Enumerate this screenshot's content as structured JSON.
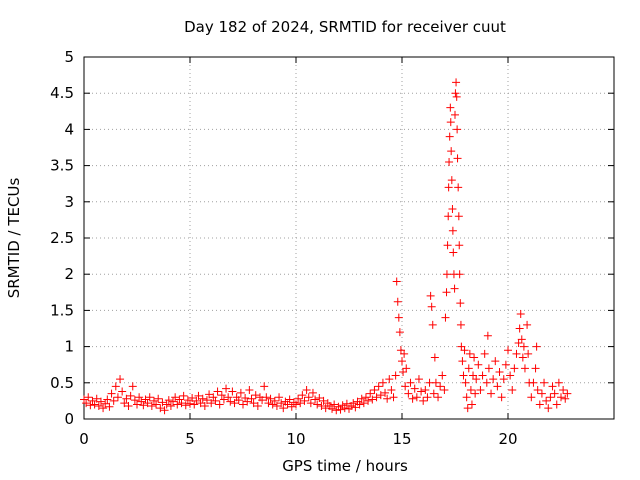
{
  "chart_data": {
    "type": "scatter",
    "title": "Day 182 of 2024, SRMTID for receiver cuut",
    "xlabel": "GPS time / hours",
    "ylabel": "SRMTID / TECUs",
    "xlim": [
      0,
      25
    ],
    "ylim": [
      0,
      5
    ],
    "xticks": [
      0,
      5,
      10,
      15,
      20
    ],
    "xtick_labels": [
      "0",
      "5",
      "10",
      "15",
      "20"
    ],
    "yticks": [
      0,
      0.5,
      1,
      1.5,
      2,
      2.5,
      3,
      3.5,
      4,
      4.5,
      5
    ],
    "ytick_labels": [
      "0",
      "0.5",
      "1",
      "1.5",
      "2",
      "2.5",
      "3",
      "3.5",
      "4",
      "4.5",
      "5"
    ],
    "grid": true,
    "marker": "+",
    "series": [
      {
        "name": "SRMTID",
        "color": "#ff0000",
        "points": [
          [
            0.0,
            0.27
          ],
          [
            0.1,
            0.22
          ],
          [
            0.2,
            0.3
          ],
          [
            0.3,
            0.19
          ],
          [
            0.4,
            0.25
          ],
          [
            0.5,
            0.2
          ],
          [
            0.6,
            0.28
          ],
          [
            0.7,
            0.18
          ],
          [
            0.8,
            0.24
          ],
          [
            0.9,
            0.15
          ],
          [
            1.0,
            0.21
          ],
          [
            1.1,
            0.27
          ],
          [
            1.2,
            0.17
          ],
          [
            1.3,
            0.35
          ],
          [
            1.4,
            0.25
          ],
          [
            1.5,
            0.45
          ],
          [
            1.6,
            0.3
          ],
          [
            1.7,
            0.55
          ],
          [
            1.8,
            0.38
          ],
          [
            1.9,
            0.22
          ],
          [
            2.0,
            0.28
          ],
          [
            2.1,
            0.18
          ],
          [
            2.2,
            0.32
          ],
          [
            2.3,
            0.45
          ],
          [
            2.4,
            0.26
          ],
          [
            2.5,
            0.2
          ],
          [
            2.6,
            0.3
          ],
          [
            2.7,
            0.24
          ],
          [
            2.8,
            0.19
          ],
          [
            2.9,
            0.27
          ],
          [
            3.0,
            0.22
          ],
          [
            3.1,
            0.3
          ],
          [
            3.2,
            0.18
          ],
          [
            3.3,
            0.25
          ],
          [
            3.4,
            0.2
          ],
          [
            3.5,
            0.28
          ],
          [
            3.6,
            0.15
          ],
          [
            3.7,
            0.23
          ],
          [
            3.8,
            0.12
          ],
          [
            3.9,
            0.2
          ],
          [
            4.0,
            0.26
          ],
          [
            4.1,
            0.18
          ],
          [
            4.2,
            0.24
          ],
          [
            4.3,
            0.3
          ],
          [
            4.4,
            0.2
          ],
          [
            4.5,
            0.27
          ],
          [
            4.6,
            0.22
          ],
          [
            4.7,
            0.32
          ],
          [
            4.8,
            0.19
          ],
          [
            4.9,
            0.26
          ],
          [
            5.0,
            0.21
          ],
          [
            5.1,
            0.29
          ],
          [
            5.2,
            0.2
          ],
          [
            5.3,
            0.25
          ],
          [
            5.4,
            0.32
          ],
          [
            5.5,
            0.22
          ],
          [
            5.6,
            0.28
          ],
          [
            5.7,
            0.18
          ],
          [
            5.8,
            0.26
          ],
          [
            5.9,
            0.34
          ],
          [
            6.0,
            0.22
          ],
          [
            6.1,
            0.3
          ],
          [
            6.2,
            0.25
          ],
          [
            6.3,
            0.38
          ],
          [
            6.4,
            0.2
          ],
          [
            6.5,
            0.33
          ],
          [
            6.6,
            0.27
          ],
          [
            6.7,
            0.42
          ],
          [
            6.8,
            0.3
          ],
          [
            6.9,
            0.24
          ],
          [
            7.0,
            0.38
          ],
          [
            7.1,
            0.22
          ],
          [
            7.2,
            0.3
          ],
          [
            7.3,
            0.26
          ],
          [
            7.4,
            0.36
          ],
          [
            7.5,
            0.2
          ],
          [
            7.6,
            0.29
          ],
          [
            7.7,
            0.24
          ],
          [
            7.8,
            0.4
          ],
          [
            7.9,
            0.28
          ],
          [
            8.0,
            0.22
          ],
          [
            8.1,
            0.33
          ],
          [
            8.2,
            0.18
          ],
          [
            8.3,
            0.3
          ],
          [
            8.4,
            0.26
          ],
          [
            8.5,
            0.45
          ],
          [
            8.6,
            0.3
          ],
          [
            8.7,
            0.22
          ],
          [
            8.8,
            0.28
          ],
          [
            8.9,
            0.2
          ],
          [
            9.0,
            0.25
          ],
          [
            9.1,
            0.18
          ],
          [
            9.2,
            0.3
          ],
          [
            9.3,
            0.22
          ],
          [
            9.4,
            0.15
          ],
          [
            9.5,
            0.24
          ],
          [
            9.6,
            0.2
          ],
          [
            9.7,
            0.27
          ],
          [
            9.8,
            0.17
          ],
          [
            9.9,
            0.23
          ],
          [
            10.0,
            0.2
          ],
          [
            10.1,
            0.28
          ],
          [
            10.2,
            0.22
          ],
          [
            10.3,
            0.33
          ],
          [
            10.4,
            0.25
          ],
          [
            10.5,
            0.4
          ],
          [
            10.6,
            0.3
          ],
          [
            10.7,
            0.22
          ],
          [
            10.8,
            0.36
          ],
          [
            10.9,
            0.27
          ],
          [
            11.0,
            0.2
          ],
          [
            11.1,
            0.29
          ],
          [
            11.2,
            0.18
          ],
          [
            11.3,
            0.25
          ],
          [
            11.4,
            0.15
          ],
          [
            11.5,
            0.22
          ],
          [
            11.6,
            0.18
          ],
          [
            11.7,
            0.14
          ],
          [
            11.8,
            0.2
          ],
          [
            11.9,
            0.12
          ],
          [
            12.0,
            0.17
          ],
          [
            12.1,
            0.13
          ],
          [
            12.2,
            0.19
          ],
          [
            12.3,
            0.15
          ],
          [
            12.4,
            0.21
          ],
          [
            12.5,
            0.14
          ],
          [
            12.6,
            0.18
          ],
          [
            12.7,
            0.22
          ],
          [
            12.8,
            0.16
          ],
          [
            12.9,
            0.24
          ],
          [
            13.0,
            0.2
          ],
          [
            13.1,
            0.28
          ],
          [
            13.2,
            0.22
          ],
          [
            13.3,
            0.3
          ],
          [
            13.4,
            0.25
          ],
          [
            13.5,
            0.35
          ],
          [
            13.6,
            0.27
          ],
          [
            13.7,
            0.4
          ],
          [
            13.8,
            0.3
          ],
          [
            13.9,
            0.45
          ],
          [
            14.0,
            0.33
          ],
          [
            14.1,
            0.5
          ],
          [
            14.2,
            0.36
          ],
          [
            14.3,
            0.28
          ],
          [
            14.4,
            0.55
          ],
          [
            14.5,
            0.4
          ],
          [
            14.6,
            0.3
          ],
          [
            14.7,
            0.6
          ],
          [
            14.75,
            1.9
          ],
          [
            14.8,
            1.62
          ],
          [
            14.85,
            1.4
          ],
          [
            14.9,
            1.2
          ],
          [
            14.95,
            0.95
          ],
          [
            15.0,
            0.8
          ],
          [
            15.05,
            0.65
          ],
          [
            15.1,
            0.9
          ],
          [
            15.15,
            0.45
          ],
          [
            15.2,
            0.7
          ],
          [
            15.3,
            0.35
          ],
          [
            15.4,
            0.5
          ],
          [
            15.5,
            0.28
          ],
          [
            15.6,
            0.42
          ],
          [
            15.7,
            0.3
          ],
          [
            15.8,
            0.55
          ],
          [
            15.9,
            0.38
          ],
          [
            16.0,
            0.25
          ],
          [
            16.1,
            0.4
          ],
          [
            16.2,
            0.3
          ],
          [
            16.3,
            0.5
          ],
          [
            16.35,
            1.7
          ],
          [
            16.4,
            1.55
          ],
          [
            16.45,
            1.3
          ],
          [
            16.5,
            0.35
          ],
          [
            16.55,
            0.85
          ],
          [
            16.6,
            0.5
          ],
          [
            16.7,
            0.3
          ],
          [
            16.8,
            0.45
          ],
          [
            16.9,
            0.6
          ],
          [
            17.0,
            0.4
          ],
          [
            17.05,
            1.4
          ],
          [
            17.1,
            1.75
          ],
          [
            17.12,
            2.0
          ],
          [
            17.15,
            2.4
          ],
          [
            17.18,
            2.8
          ],
          [
            17.2,
            3.2
          ],
          [
            17.22,
            3.55
          ],
          [
            17.25,
            3.9
          ],
          [
            17.28,
            4.3
          ],
          [
            17.3,
            4.1
          ],
          [
            17.32,
            3.7
          ],
          [
            17.35,
            3.3
          ],
          [
            17.38,
            2.9
          ],
          [
            17.4,
            2.6
          ],
          [
            17.42,
            2.3
          ],
          [
            17.45,
            2.0
          ],
          [
            17.48,
            1.8
          ],
          [
            17.5,
            4.2
          ],
          [
            17.52,
            4.5
          ],
          [
            17.55,
            4.65
          ],
          [
            17.58,
            4.45
          ],
          [
            17.6,
            4.0
          ],
          [
            17.62,
            3.6
          ],
          [
            17.65,
            3.2
          ],
          [
            17.68,
            2.8
          ],
          [
            17.7,
            2.4
          ],
          [
            17.72,
            2.0
          ],
          [
            17.75,
            1.6
          ],
          [
            17.78,
            1.3
          ],
          [
            17.8,
            1.0
          ],
          [
            17.85,
            0.8
          ],
          [
            17.9,
            0.6
          ],
          [
            17.95,
            0.95
          ],
          [
            18.0,
            0.5
          ],
          [
            18.05,
            0.3
          ],
          [
            18.1,
            0.15
          ],
          [
            18.15,
            0.7
          ],
          [
            18.2,
            0.9
          ],
          [
            18.25,
            0.4
          ],
          [
            18.3,
            0.2
          ],
          [
            18.35,
            0.6
          ],
          [
            18.4,
            0.85
          ],
          [
            18.45,
            0.35
          ],
          [
            18.5,
            0.55
          ],
          [
            18.6,
            0.75
          ],
          [
            18.7,
            0.4
          ],
          [
            18.8,
            0.6
          ],
          [
            18.9,
            0.9
          ],
          [
            19.0,
            0.5
          ],
          [
            19.05,
            1.15
          ],
          [
            19.1,
            0.7
          ],
          [
            19.2,
            0.35
          ],
          [
            19.3,
            0.55
          ],
          [
            19.4,
            0.8
          ],
          [
            19.5,
            0.45
          ],
          [
            19.6,
            0.65
          ],
          [
            19.7,
            0.3
          ],
          [
            19.8,
            0.55
          ],
          [
            19.9,
            0.75
          ],
          [
            20.0,
            0.95
          ],
          [
            20.1,
            0.6
          ],
          [
            20.2,
            0.4
          ],
          [
            20.3,
            0.7
          ],
          [
            20.4,
            0.9
          ],
          [
            20.5,
            1.05
          ],
          [
            20.55,
            1.25
          ],
          [
            20.6,
            1.45
          ],
          [
            20.65,
            1.1
          ],
          [
            20.7,
            0.85
          ],
          [
            20.75,
            1.0
          ],
          [
            20.8,
            0.7
          ],
          [
            20.9,
            1.3
          ],
          [
            20.95,
            0.9
          ],
          [
            21.0,
            0.5
          ],
          [
            21.1,
            0.3
          ],
          [
            21.2,
            0.5
          ],
          [
            21.3,
            0.7
          ],
          [
            21.35,
            1.0
          ],
          [
            21.4,
            0.4
          ],
          [
            21.5,
            0.2
          ],
          [
            21.6,
            0.35
          ],
          [
            21.7,
            0.5
          ],
          [
            21.8,
            0.25
          ],
          [
            21.9,
            0.15
          ],
          [
            22.0,
            0.3
          ],
          [
            22.1,
            0.45
          ],
          [
            22.2,
            0.35
          ],
          [
            22.3,
            0.2
          ],
          [
            22.4,
            0.5
          ],
          [
            22.5,
            0.3
          ],
          [
            22.6,
            0.4
          ],
          [
            22.7,
            0.28
          ],
          [
            22.8,
            0.35
          ]
        ]
      }
    ]
  }
}
